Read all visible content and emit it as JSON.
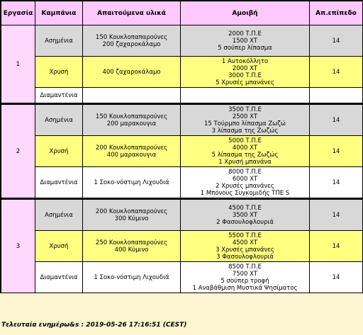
{
  "headers": {
    "quest": "Εργασία",
    "campaign": "Καμπάνια",
    "materials": "Απαιτούμενα υλικά",
    "reward": "Αμοιβή",
    "level": "Απ.επίπεδο"
  },
  "quests": [
    {
      "number": "1",
      "rows": [
        {
          "tier": "silver",
          "campaign": "Ασημένια",
          "materials": [
            "150 Κουκλοπαπαρούνες",
            "200 ζαχαροκάλαμο"
          ],
          "reward": [
            "2000 Τ.Π.Ε",
            "1500 ΧΤ",
            "5 σούπερ λίπασμα"
          ],
          "level": "14"
        },
        {
          "tier": "gold",
          "campaign": "Χρυσή",
          "materials": [
            "400 ζαχαροκάλαμο"
          ],
          "reward": [
            "1 Αυτοκόλλητο",
            "2000 ΧΤ",
            "3000 Τ.Π.Ε",
            "5 Χρυσές μπανάνες"
          ],
          "level": "14"
        },
        {
          "tier": "diamond",
          "campaign": "Διαμαντένια",
          "materials": [],
          "reward": [],
          "level": ""
        }
      ]
    },
    {
      "number": "2",
      "rows": [
        {
          "tier": "silver",
          "campaign": "Ασημένια",
          "materials": [
            "150 Κουκλοπαπαρούνες",
            "200 μαρακουγια"
          ],
          "reward": [
            "3500 Τ.Π.Ε",
            "2500 ΧΤ",
            "15 Τούρμπο λίπασμα Ζωζώ",
            "3 λίπασμα της Ζωζώς"
          ],
          "level": "14"
        },
        {
          "tier": "gold",
          "campaign": "Χρυσή",
          "materials": [
            "200 Κουκλοπαπαρούνες",
            "400 μαρακουγια"
          ],
          "reward": [
            "5000 Τ.Π.Ε",
            "4000 ΧΤ",
            "5 λίπασμα της Ζωζώς",
            "1 Χρυσή μπανάνα"
          ],
          "level": "14"
        },
        {
          "tier": "diamond",
          "campaign": "Διαμαντένια",
          "materials": [
            "1 Σοκο-νόστιμη Λιχουδιά"
          ],
          "reward": [
            "8000 Τ.Π.Ε",
            "6000 ΧΤ",
            "2 Χρυσές μπανάνες",
            "1 Μπόνους Συγκομιδής ΤΠΕ S"
          ],
          "level": "14"
        }
      ]
    },
    {
      "number": "3",
      "rows": [
        {
          "tier": "silver",
          "campaign": "Ασημένια",
          "materials": [
            "200 Κουκλοπαπαρούνες",
            "300 Κύμινο"
          ],
          "reward": [
            "4500 Τ.Π.Ε",
            "3500 ΧΤ",
            "2 Φασουλοφλουριά"
          ],
          "level": "14"
        },
        {
          "tier": "gold",
          "campaign": "Χρυσή",
          "materials": [
            "250 Κουκλοπαπαρούνες",
            "400 Κύμινο"
          ],
          "reward": [
            "5500 Τ.Π.Ε",
            "4500 ΧΤ",
            "3 Χρυσές μπανάνες",
            "3 Φασουλοφλουριά"
          ],
          "level": "14"
        },
        {
          "tier": "diamond",
          "campaign": "Διαμαντένια",
          "materials": [
            "1 Σοκο-νόστιμη Λιχουδιά"
          ],
          "reward": [
            "8500 Τ.Π.Ε",
            "7500 ΧΤ",
            "5 σούπερ τροφή",
            "1 Αναβάθμιση Μυστικά Ψησίματος"
          ],
          "level": "14"
        }
      ]
    }
  ],
  "footer": "Τελευταία ενημέρω&s : 2019-05-26 17:16:51 (CEST)"
}
